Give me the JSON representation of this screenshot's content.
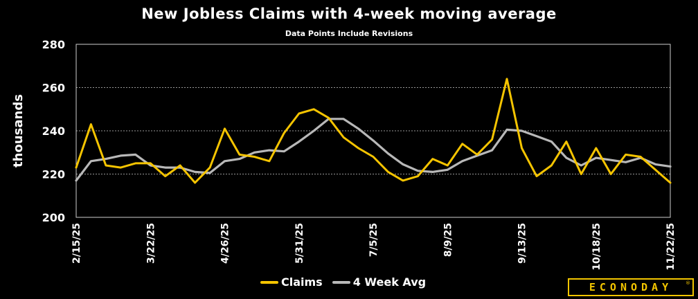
{
  "chart_data": {
    "type": "line",
    "title": "New Jobless Claims with 4-week moving average",
    "subtitle": "Data Points Include Revisions",
    "ylabel": "thousands",
    "xlabel": "",
    "ylim": [
      200,
      280
    ],
    "yticks": [
      200,
      220,
      240,
      260,
      280
    ],
    "grid": true,
    "legend": "bottom-center",
    "x": [
      "2/15/25",
      "2/22/25",
      "3/1/25",
      "3/8/25",
      "3/15/25",
      "3/22/25",
      "3/29/25",
      "4/5/25",
      "4/12/25",
      "4/19/25",
      "4/26/25",
      "5/3/25",
      "5/10/25",
      "5/17/25",
      "5/24/25",
      "5/31/25",
      "6/7/25",
      "6/14/25",
      "6/21/25",
      "6/28/25",
      "7/5/25",
      "7/12/25",
      "7/19/25",
      "7/26/25",
      "8/2/25",
      "8/9/25",
      "8/16/25",
      "8/23/25",
      "8/30/25",
      "9/6/25",
      "9/13/25",
      "9/20/25",
      "9/27/25",
      "10/4/25",
      "10/11/25",
      "10/18/25",
      "10/25/25",
      "11/1/25",
      "11/8/25",
      "11/15/25",
      "11/22/25"
    ],
    "xtick_labels": [
      "2/15/25",
      "3/22/25",
      "4/26/25",
      "5/31/25",
      "7/5/25",
      "8/9/25",
      "9/13/25",
      "10/18/25",
      "11/22/25"
    ],
    "series": [
      {
        "name": "Claims",
        "color": "#f5c400",
        "values": [
          223,
          243,
          224,
          223,
          225,
          225,
          219,
          224,
          216,
          223,
          241,
          229,
          228,
          226,
          239,
          248,
          250,
          246,
          237,
          232,
          228,
          221,
          217,
          219,
          227,
          224,
          234,
          229,
          236,
          264,
          232,
          219,
          224,
          235,
          220,
          232,
          220,
          229,
          228,
          222,
          216
        ]
      },
      {
        "name": "4 Week Avg",
        "color": "#b8b8b8",
        "values": [
          217,
          226,
          227,
          228.5,
          229,
          224,
          223,
          223,
          221,
          220.5,
          226,
          227,
          230,
          231,
          230.5,
          235,
          240,
          245.5,
          245.5,
          241,
          235.5,
          229.5,
          224.5,
          221.5,
          221,
          222,
          226,
          228.5,
          231,
          240.5,
          240,
          237.5,
          235,
          227.5,
          224,
          227.5,
          226.5,
          225.5,
          227.5,
          224.5,
          223.5
        ]
      }
    ]
  },
  "brand": {
    "name": "ECONODAY",
    "mark": "®"
  }
}
